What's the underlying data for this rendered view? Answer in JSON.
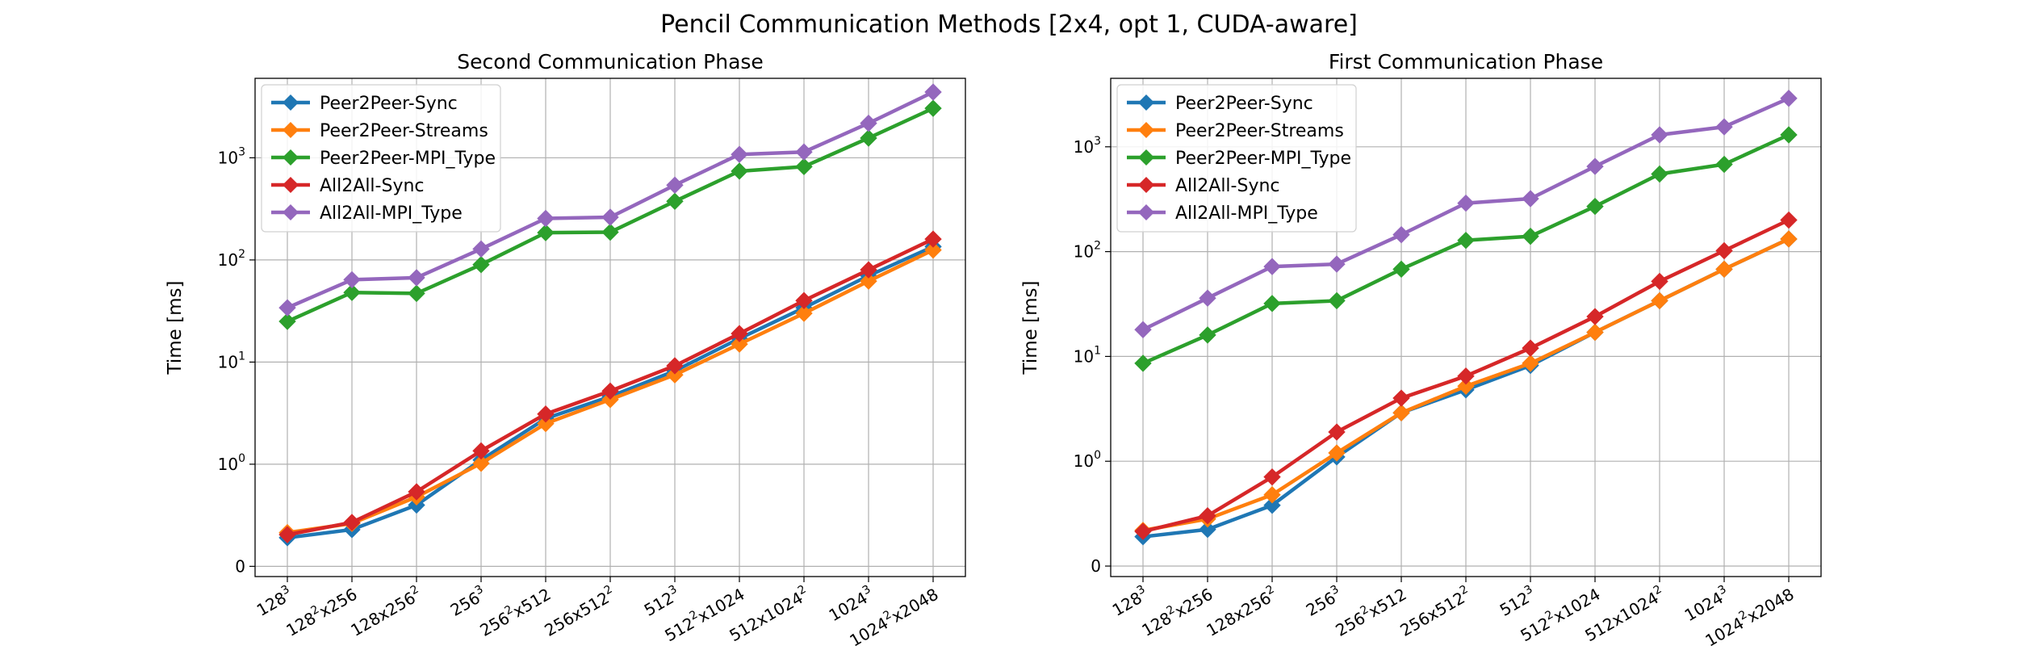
{
  "figure": {
    "title": "Pencil Communication Methods [2x4, opt 1, CUDA-aware]"
  },
  "colors": {
    "Peer2Peer-Sync": "#1f77b4",
    "Peer2Peer-Streams": "#ff7f0e",
    "Peer2Peer-MPI_Type": "#2ca02c",
    "All2All-Sync": "#d62728",
    "All2All-MPI_Type": "#9467bd"
  },
  "chart_data": [
    {
      "type": "line",
      "title": "Second Communication Phase",
      "xlabel": "",
      "ylabel": "Time [ms]",
      "yscale": "symlog",
      "grid": true,
      "legend": "top-left",
      "categories": [
        {
          "base": "128",
          "sup": "3",
          "rest": ""
        },
        {
          "base": "128",
          "sup": "2",
          "rest": "x256"
        },
        {
          "base": "128x256",
          "sup": "2",
          "rest": ""
        },
        {
          "base": "256",
          "sup": "3",
          "rest": ""
        },
        {
          "base": "256",
          "sup": "2",
          "rest": "x512"
        },
        {
          "base": "256x512",
          "sup": "2",
          "rest": ""
        },
        {
          "base": "512",
          "sup": "3",
          "rest": ""
        },
        {
          "base": "512",
          "sup": "2",
          "rest": "x1024"
        },
        {
          "base": "512x1024",
          "sup": "2",
          "rest": ""
        },
        {
          "base": "1024",
          "sup": "3",
          "rest": ""
        },
        {
          "base": "1024",
          "sup": "2",
          "rest": "x2048"
        }
      ],
      "yticks": [
        {
          "base": "0",
          "exp": "",
          "value": 0
        },
        {
          "base": "10",
          "exp": "0",
          "value": 1
        },
        {
          "base": "10",
          "exp": "1",
          "value": 10
        },
        {
          "base": "10",
          "exp": "2",
          "value": 100
        },
        {
          "base": "10",
          "exp": "3",
          "value": 1000
        }
      ],
      "ylim": [
        -0.1,
        6000
      ],
      "series": [
        {
          "name": "Peer2Peer-Sync",
          "values": [
            0.28,
            0.36,
            0.6,
            1.1,
            2.8,
            4.6,
            8.2,
            17,
            34,
            70,
            135
          ]
        },
        {
          "name": "Peer2Peer-Streams",
          "values": [
            0.33,
            0.42,
            0.68,
            1.02,
            2.5,
            4.3,
            7.5,
            15,
            30,
            62,
            125
          ]
        },
        {
          "name": "Peer2Peer-MPI_Type",
          "values": [
            25,
            48,
            47,
            90,
            185,
            187,
            375,
            740,
            820,
            1560,
            3050
          ]
        },
        {
          "name": "All2All-Sync",
          "values": [
            0.31,
            0.43,
            0.73,
            1.35,
            3.1,
            5.2,
            9.2,
            19,
            40,
            80,
            160
          ]
        },
        {
          "name": "All2All-MPI_Type",
          "values": [
            34,
            64,
            67,
            128,
            255,
            262,
            540,
            1080,
            1140,
            2180,
            4400
          ]
        }
      ]
    },
    {
      "type": "line",
      "title": "First Communication Phase",
      "xlabel": "",
      "ylabel": "Time [ms]",
      "yscale": "symlog",
      "grid": true,
      "legend": "top-left",
      "categories": [
        {
          "base": "128",
          "sup": "3",
          "rest": ""
        },
        {
          "base": "128",
          "sup": "2",
          "rest": "x256"
        },
        {
          "base": "128x256",
          "sup": "2",
          "rest": ""
        },
        {
          "base": "256",
          "sup": "3",
          "rest": ""
        },
        {
          "base": "256",
          "sup": "2",
          "rest": "x512"
        },
        {
          "base": "256x512",
          "sup": "2",
          "rest": ""
        },
        {
          "base": "512",
          "sup": "3",
          "rest": ""
        },
        {
          "base": "512",
          "sup": "2",
          "rest": "x1024"
        },
        {
          "base": "512x1024",
          "sup": "2",
          "rest": ""
        },
        {
          "base": "1024",
          "sup": "3",
          "rest": ""
        },
        {
          "base": "1024",
          "sup": "2",
          "rest": "x2048"
        }
      ],
      "yticks": [
        {
          "base": "0",
          "exp": "",
          "value": 0
        },
        {
          "base": "10",
          "exp": "0",
          "value": 1
        },
        {
          "base": "10",
          "exp": "1",
          "value": 10
        },
        {
          "base": "10",
          "exp": "2",
          "value": 100
        },
        {
          "base": "10",
          "exp": "3",
          "value": 1000
        }
      ],
      "ylim": [
        -0.1,
        4500
      ],
      "series": [
        {
          "name": "Peer2Peer-Sync",
          "values": [
            0.28,
            0.35,
            0.58,
            1.1,
            2.9,
            4.8,
            8.2,
            17,
            34,
            68,
            132
          ]
        },
        {
          "name": "Peer2Peer-Streams",
          "values": [
            0.34,
            0.45,
            0.68,
            1.2,
            2.9,
            5.2,
            8.6,
            17,
            34,
            68,
            132
          ]
        },
        {
          "name": "Peer2Peer-MPI_Type",
          "values": [
            8.6,
            16,
            32,
            34,
            68,
            128,
            140,
            270,
            550,
            680,
            1300
          ]
        },
        {
          "name": "All2All-Sync",
          "values": [
            0.33,
            0.48,
            0.85,
            1.9,
            4.0,
            6.5,
            12,
            24,
            52,
            102,
            200
          ]
        },
        {
          "name": "All2All-MPI_Type",
          "values": [
            18,
            36,
            72,
            76,
            145,
            290,
            320,
            650,
            1300,
            1550,
            2900
          ]
        }
      ]
    }
  ]
}
